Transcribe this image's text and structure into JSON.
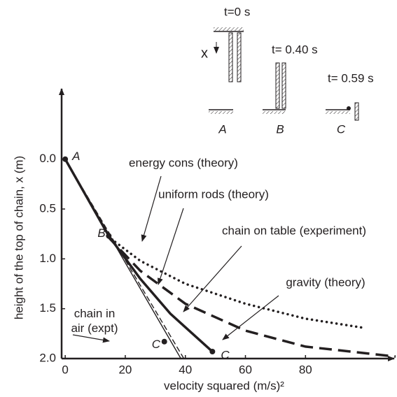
{
  "chart_data": {
    "type": "line",
    "xlabel": "velocity squared  (m/s)²",
    "ylabel": "height of the top of chain, x (m)",
    "xlim": [
      -1.2,
      110
    ],
    "ylim": [
      2.0,
      -0.72
    ],
    "xticks": [
      0,
      20,
      40,
      60,
      80
    ],
    "yticks": [
      {
        "value": 0,
        "label": "0.0"
      },
      0.5,
      {
        "value": 1,
        "label": "1.0"
      },
      1.5,
      {
        "value": 2,
        "label": "2.0"
      }
    ],
    "series": [
      {
        "name": "energy cons (theory)",
        "color": "#231f20",
        "style": "dotted",
        "weight": "thick",
        "x": [
          14,
          25,
          40,
          60,
          80,
          99
        ],
        "values": [
          0.77,
          1.02,
          1.25,
          1.45,
          1.6,
          1.69
        ]
      },
      {
        "name": "uniform rods (theory)",
        "color": "#231f20",
        "style": "dashed",
        "weight": "thick",
        "x": [
          14,
          25,
          40,
          60,
          80,
          110
        ],
        "values": [
          0.77,
          1.12,
          1.45,
          1.72,
          1.88,
          1.98
        ]
      },
      {
        "name": "chain on table (experiment)",
        "color": "#231f20",
        "style": "solid",
        "weight": "thick",
        "x": [
          0,
          14.5,
          25,
          35,
          49
        ],
        "values": [
          0,
          0.77,
          1.2,
          1.55,
          1.93
        ]
      },
      {
        "name": "gravity (theory)",
        "color": "#231f20",
        "style": "dashed",
        "weight": "thin",
        "x": [
          0,
          39.5
        ],
        "values": [
          0,
          2.0
        ]
      },
      {
        "name": "chain in air (expt)",
        "color": "#231f20",
        "style": "solid",
        "weight": "thin",
        "x": [
          0,
          38.5
        ],
        "values": [
          0,
          2.0
        ]
      }
    ],
    "markers": [
      {
        "label": "A",
        "x": 0,
        "y": 0
      },
      {
        "label": "B",
        "x": 14.5,
        "y": 0.77
      },
      {
        "label": "C",
        "x": 33,
        "y": 1.83
      },
      {
        "label": "C",
        "x": 49,
        "y": 1.93
      }
    ],
    "inset": {
      "times": [
        "t=0 s",
        "t= 0.40 s",
        "t= 0.59 s"
      ],
      "stages": [
        "A",
        "B",
        "C"
      ],
      "x_label": "x"
    }
  }
}
